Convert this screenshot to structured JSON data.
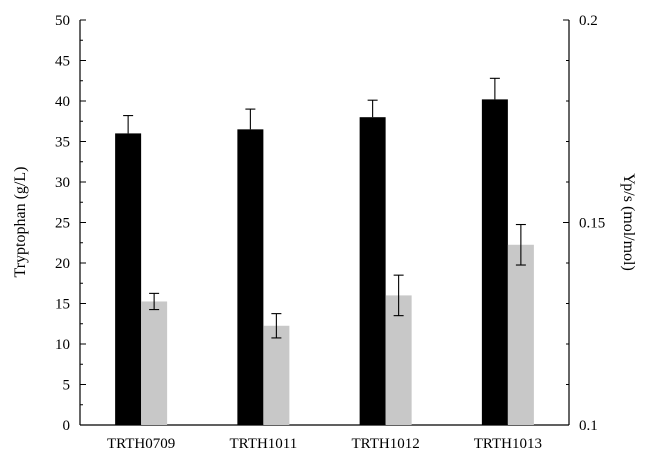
{
  "chart_data": {
    "type": "bar",
    "categories": [
      "TRTH0709",
      "TRTH1011",
      "TRTH1012",
      "TRTH1013"
    ],
    "series": [
      {
        "axis": "left",
        "color": "#000000",
        "values": [
          36.0,
          36.5,
          38.0,
          40.2
        ],
        "errors": [
          2.2,
          2.5,
          2.1,
          2.6
        ]
      },
      {
        "axis": "right",
        "color": "#c8c8c8",
        "values": [
          0.1305,
          0.1245,
          0.132,
          0.1445
        ],
        "errors": [
          0.002,
          0.003,
          0.005,
          0.005
        ]
      }
    ],
    "ylabel": "Tryptophan (g/L)",
    "y2label": "Yp/s (mol/mol)",
    "ylim": [
      0,
      50
    ],
    "y2lim": [
      0.1,
      0.2
    ],
    "yticks": [
      "0",
      "5",
      "10",
      "15",
      "20",
      "25",
      "30",
      "35",
      "40",
      "45",
      "50"
    ],
    "y2ticks": [
      "0.1",
      "0.15",
      "0.2"
    ],
    "grid": false,
    "legend": "none"
  }
}
